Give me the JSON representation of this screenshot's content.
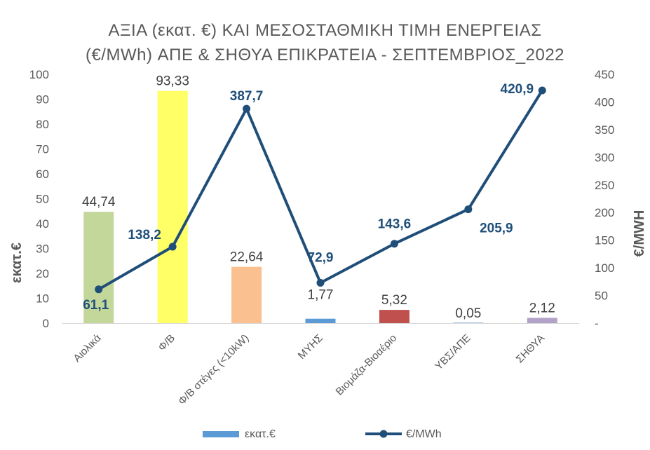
{
  "title_line1": "ΑΞΙΑ (εκατ. €) ΚΑΙ ΜΕΣΟΣΤΑΘΜΙΚΗ ΤΙΜΗ ΕΝΕΡΓΕΙΑΣ",
  "title_line2": "(€/MWh) ΑΠΕ & ΣΗΘΥΑ ΕΠΙΚΡΑΤΕΙΑ - ΣΕΠΤΕΜΒΡΙΟΣ_2022",
  "colors": {
    "line": "#1f4e79",
    "legend_bar": "#5b9bd5",
    "text": "#595959"
  },
  "chart_data": {
    "type": "bar",
    "title": "ΑΞΙΑ (εκατ. €) ΚΑΙ ΜΕΣΟΣΤΑΘΜΙΚΗ ΤΙΜΗ ΕΝΕΡΓΕΙΑΣ (€/MWh) ΑΠΕ & ΣΗΘΥΑ ΕΠΙΚΡΑΤΕΙΑ - ΣΕΠΤΕΜΒΡΙΟΣ_2022",
    "categories": [
      "Αιολικά",
      "Φ/Β",
      "Φ/Β στέγες (<10kW)",
      "ΜΥΗΣ",
      "Βιομάζα-Βιοαέριο",
      "ΥΒΣ/ΑΠΕ",
      "ΣΗΘΥΑ"
    ],
    "series": [
      {
        "name": "εκατ.€",
        "type": "bar",
        "axis": "left",
        "values": [
          44.74,
          93.33,
          22.64,
          1.77,
          5.32,
          0.05,
          2.12
        ],
        "labels": [
          "44,74",
          "93,33",
          "22,64",
          "1,77",
          "5,32",
          "0,05",
          "2,12"
        ],
        "colors": [
          "#c4d79b",
          "#ffff66",
          "#fac090",
          "#5b9bd5",
          "#c0504d",
          "#5b9bd5",
          "#b3a2c7"
        ]
      },
      {
        "name": "€/MWh",
        "type": "line",
        "axis": "right",
        "values": [
          61.1,
          138.2,
          387.7,
          72.9,
          143.6,
          205.9,
          420.9
        ],
        "labels": [
          "61,1",
          "138,2",
          "387,7",
          "72,9",
          "143,6",
          "205,9",
          "420,9"
        ]
      }
    ],
    "ylabel": "εκατ.€",
    "y2label": "€/MWH",
    "ylim": [
      0,
      100
    ],
    "y2lim": [
      0,
      450
    ],
    "yticks": [
      "0",
      "10",
      "20",
      "30",
      "40",
      "50",
      "60",
      "70",
      "80",
      "90",
      "100"
    ],
    "y2ticks": [
      "-",
      "50",
      "100",
      "150",
      "200",
      "250",
      "300",
      "350",
      "400",
      "450"
    ],
    "legend": [
      "εκατ.€",
      "€/MWh"
    ],
    "legend_position": "bottom",
    "grid": false
  }
}
